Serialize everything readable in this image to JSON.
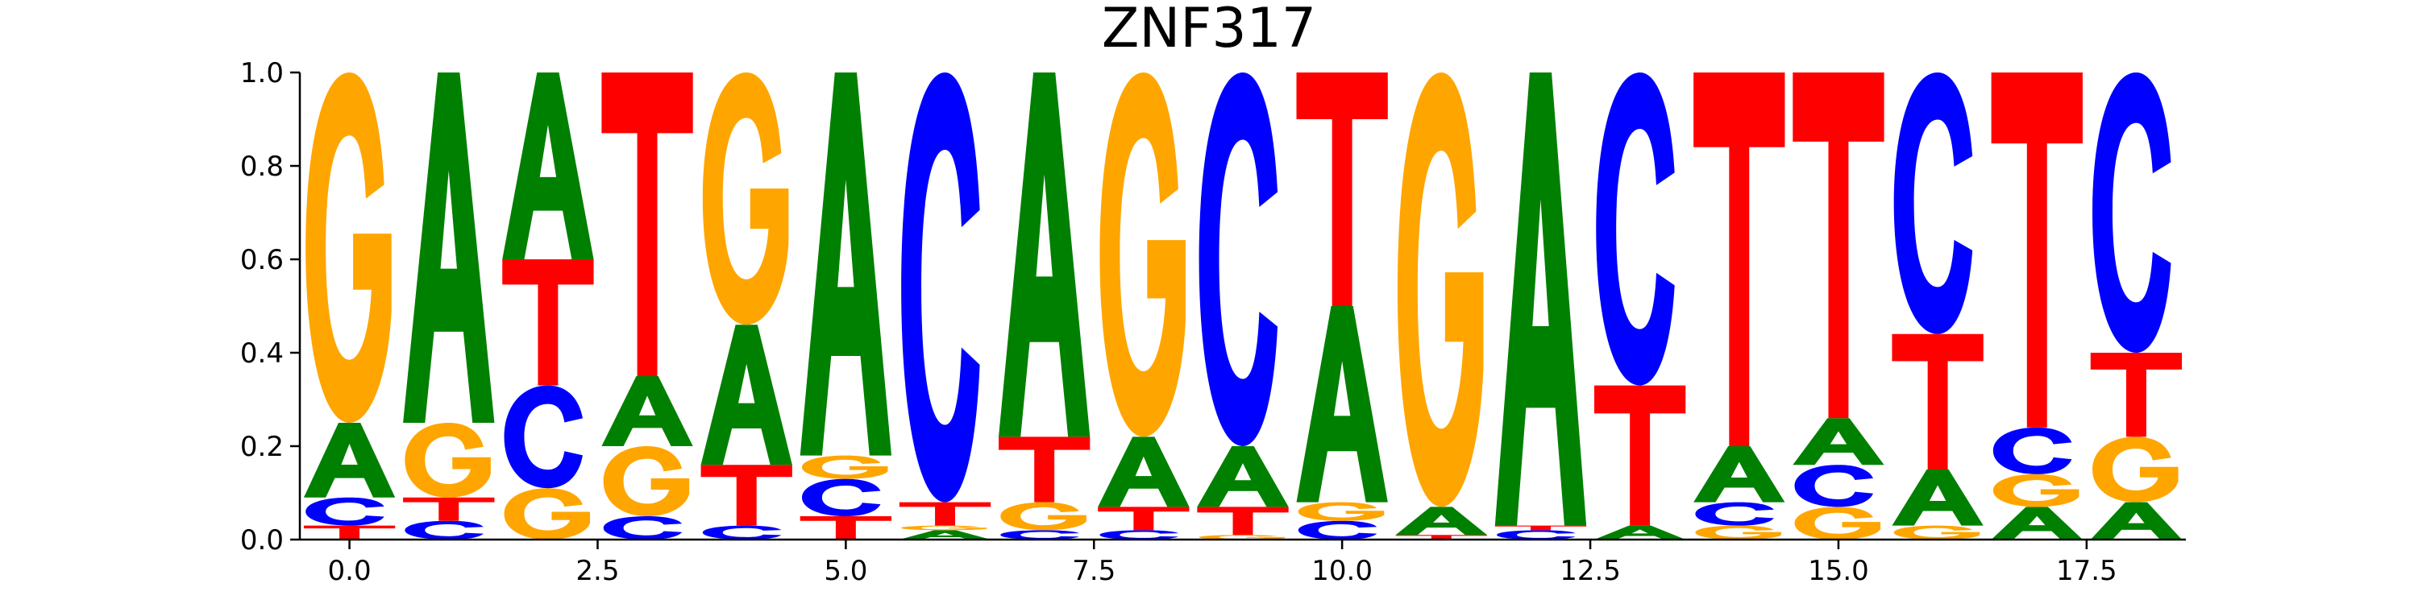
{
  "chart_data": {
    "type": "sequence-logo",
    "title": "ZNF317",
    "xlabel": "",
    "ylabel": "",
    "xlim": [
      -0.5,
      18.5
    ],
    "ylim": [
      0,
      1
    ],
    "xticks": [
      0.0,
      2.5,
      5.0,
      7.5,
      10.0,
      12.5,
      15.0,
      17.5
    ],
    "xtick_labels": [
      "0.0",
      "2.5",
      "5.0",
      "7.5",
      "10.0",
      "12.5",
      "15.0",
      "17.5"
    ],
    "yticks": [
      0.0,
      0.2,
      0.4,
      0.6,
      0.8,
      1.0
    ],
    "ytick_labels": [
      "0.0",
      "0.2",
      "0.4",
      "0.6",
      "0.8",
      "1.0"
    ],
    "letter_colors": {
      "A": "#008000",
      "C": "#0000ff",
      "G": "#ffa500",
      "T": "#ff0000"
    },
    "positions": [
      {
        "pos": 0,
        "stack": [
          [
            "T",
            0.03
          ],
          [
            "C",
            0.06
          ],
          [
            "A",
            0.16
          ],
          [
            "G",
            0.75
          ]
        ]
      },
      {
        "pos": 1,
        "stack": [
          [
            "C",
            0.04
          ],
          [
            "T",
            0.05
          ],
          [
            "G",
            0.16
          ],
          [
            "A",
            0.75
          ]
        ]
      },
      {
        "pos": 2,
        "stack": [
          [
            "G",
            0.11
          ],
          [
            "C",
            0.22
          ],
          [
            "T",
            0.27
          ],
          [
            "A",
            0.4
          ]
        ]
      },
      {
        "pos": 3,
        "stack": [
          [
            "C",
            0.05
          ],
          [
            "G",
            0.15
          ],
          [
            "A",
            0.15
          ],
          [
            "T",
            0.65
          ]
        ]
      },
      {
        "pos": 4,
        "stack": [
          [
            "C",
            0.03
          ],
          [
            "T",
            0.13
          ],
          [
            "A",
            0.3
          ],
          [
            "G",
            0.54
          ]
        ]
      },
      {
        "pos": 5,
        "stack": [
          [
            "T",
            0.05
          ],
          [
            "C",
            0.08
          ],
          [
            "G",
            0.05
          ],
          [
            "A",
            0.82
          ]
        ]
      },
      {
        "pos": 6,
        "stack": [
          [
            "A",
            0.02
          ],
          [
            "G",
            0.01
          ],
          [
            "T",
            0.05
          ],
          [
            "C",
            0.92
          ]
        ]
      },
      {
        "pos": 7,
        "stack": [
          [
            "C",
            0.02
          ],
          [
            "G",
            0.06
          ],
          [
            "T",
            0.14
          ],
          [
            "A",
            0.78
          ]
        ]
      },
      {
        "pos": 8,
        "stack": [
          [
            "C",
            0.02
          ],
          [
            "T",
            0.05
          ],
          [
            "A",
            0.15
          ],
          [
            "G",
            0.78
          ]
        ]
      },
      {
        "pos": 9,
        "stack": [
          [
            "G",
            0.01
          ],
          [
            "T",
            0.06
          ],
          [
            "A",
            0.13
          ],
          [
            "C",
            0.8
          ]
        ]
      },
      {
        "pos": 10,
        "stack": [
          [
            "C",
            0.04
          ],
          [
            "G",
            0.04
          ],
          [
            "A",
            0.42
          ],
          [
            "T",
            0.5
          ]
        ]
      },
      {
        "pos": 11,
        "stack": [
          [
            "T",
            0.01
          ],
          [
            "A",
            0.06
          ],
          [
            "G",
            0.93
          ]
        ]
      },
      {
        "pos": 12,
        "stack": [
          [
            "C",
            0.02
          ],
          [
            "T",
            0.01
          ],
          [
            "A",
            0.97
          ]
        ]
      },
      {
        "pos": 13,
        "stack": [
          [
            "A",
            0.03
          ],
          [
            "T",
            0.3
          ],
          [
            "C",
            0.67
          ]
        ]
      },
      {
        "pos": 14,
        "stack": [
          [
            "G",
            0.03
          ],
          [
            "C",
            0.05
          ],
          [
            "A",
            0.12
          ],
          [
            "T",
            0.8
          ]
        ]
      },
      {
        "pos": 15,
        "stack": [
          [
            "G",
            0.07
          ],
          [
            "C",
            0.09
          ],
          [
            "A",
            0.1
          ],
          [
            "T",
            0.74
          ]
        ]
      },
      {
        "pos": 16,
        "stack": [
          [
            "G",
            0.03
          ],
          [
            "A",
            0.12
          ],
          [
            "T",
            0.29
          ],
          [
            "C",
            0.56
          ]
        ]
      },
      {
        "pos": 17,
        "stack": [
          [
            "A",
            0.07
          ],
          [
            "G",
            0.07
          ],
          [
            "C",
            0.1
          ],
          [
            "T",
            0.76
          ]
        ]
      },
      {
        "pos": 18,
        "stack": [
          [
            "A",
            0.08
          ],
          [
            "G",
            0.14
          ],
          [
            "T",
            0.18
          ],
          [
            "C",
            0.6
          ]
        ]
      }
    ]
  }
}
